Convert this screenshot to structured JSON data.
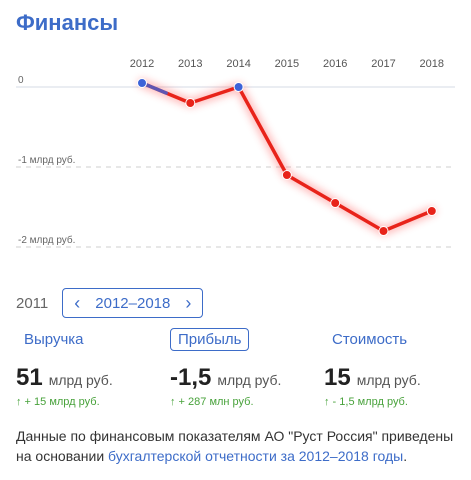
{
  "header": {
    "title": "Финансы"
  },
  "chart_data": {
    "type": "line",
    "x": [
      "2012",
      "2013",
      "2014",
      "2015",
      "2016",
      "2017",
      "2018"
    ],
    "series": [
      {
        "values": [
          0.05,
          -0.2,
          0.0,
          -1.1,
          -1.45,
          -1.8,
          -1.55
        ]
      }
    ],
    "y_tick_labels": [
      "0",
      "-1 млрд руб.",
      "-2 млрд руб."
    ],
    "y_ticks": [
      0,
      -1,
      -2
    ],
    "ylim": [
      -2.2,
      0.25
    ],
    "grid": true,
    "colors": {
      "line": "#e8231a",
      "start": "#3d63d8",
      "glow": "#ff6b6b"
    }
  },
  "range_selector": {
    "prev_year": "2011",
    "prev_icon": "chevron-left-icon",
    "label": "2012–2018",
    "next_icon": "chevron-right-icon"
  },
  "tabs": [
    {
      "label": "Выручка",
      "active": false
    },
    {
      "label": "Прибыль",
      "active": true
    },
    {
      "label": "Стоимость",
      "active": false
    }
  ],
  "metrics": [
    {
      "value": "51",
      "unit": "млрд руб.",
      "delta": "↑ + 15 млрд руб."
    },
    {
      "value": "-1,5",
      "unit": "млрд руб.",
      "delta": "↑ + 287 млн руб."
    },
    {
      "value": "15",
      "unit": "млрд руб.",
      "delta": "↑ - 1,5 млрд руб."
    }
  ],
  "description": {
    "text_before": "Данные по финансовым показателям АО \"Руст Россия\" приведены на основании ",
    "link": "бухгалтерской отчетности за 2012–2018 годы",
    "text_after": "."
  },
  "colors": {
    "accent": "#3d6cc8",
    "positive": "#48a23b"
  }
}
